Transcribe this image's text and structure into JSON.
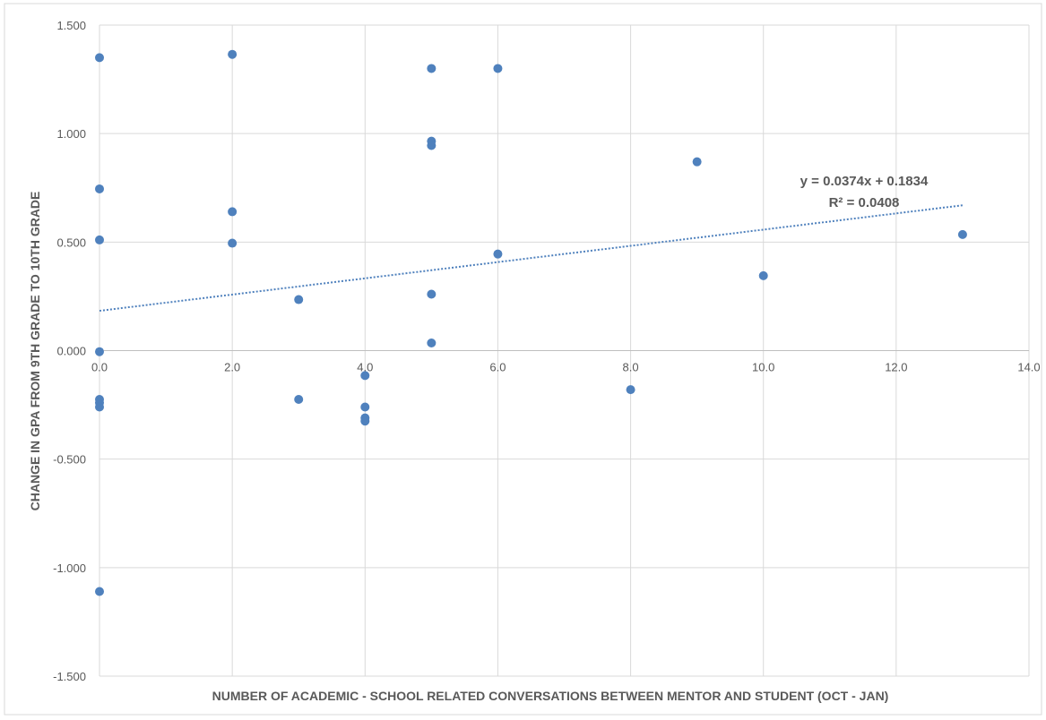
{
  "chart_data": {
    "type": "scatter",
    "title": "",
    "xlabel": "NUMBER OF ACADEMIC - SCHOOL RELATED CONVERSATIONS BETWEEN MENTOR AND STUDENT (OCT - JAN)",
    "ylabel": "CHANGE IN GPA FROM 9TH GRADE TO 10TH GRADE",
    "xlim": [
      0,
      14
    ],
    "ylim": [
      -1.5,
      1.5
    ],
    "x_ticks": [
      "0.0",
      "2.0",
      "4.0",
      "6.0",
      "8.0",
      "10.0",
      "12.0",
      "14.0"
    ],
    "y_ticks": [
      "1.500",
      "1.000",
      "0.500",
      "0.000",
      "-0.500",
      "-1.000",
      "-1.500"
    ],
    "grid": true,
    "point_color": "#4f81bd",
    "trendline_color": "#4f81bd",
    "series": [
      {
        "points": [
          [
            0,
            1.35
          ],
          [
            0,
            0.745
          ],
          [
            0,
            0.51
          ],
          [
            0,
            -0.005
          ],
          [
            0,
            -0.225
          ],
          [
            0,
            -0.24
          ],
          [
            0,
            -0.26
          ],
          [
            0,
            -1.11
          ],
          [
            2,
            1.365
          ],
          [
            2,
            0.64
          ],
          [
            2,
            0.495
          ],
          [
            3,
            0.235
          ],
          [
            3,
            -0.225
          ],
          [
            4,
            -0.115
          ],
          [
            4,
            -0.26
          ],
          [
            4,
            -0.31
          ],
          [
            4,
            -0.325
          ],
          [
            5,
            1.3
          ],
          [
            5,
            0.965
          ],
          [
            5,
            0.945
          ],
          [
            5,
            0.26
          ],
          [
            5,
            0.035
          ],
          [
            6,
            1.3
          ],
          [
            6,
            0.445
          ],
          [
            8,
            -0.18
          ],
          [
            9,
            0.87
          ],
          [
            10,
            0.345
          ],
          [
            13,
            0.535
          ]
        ]
      }
    ],
    "trendline": {
      "slope": 0.0374,
      "intercept": 0.1834,
      "x_range": [
        0,
        13
      ],
      "equation": "y = 0.0374x + 0.1834",
      "r_squared": "R² = 0.0408"
    }
  }
}
